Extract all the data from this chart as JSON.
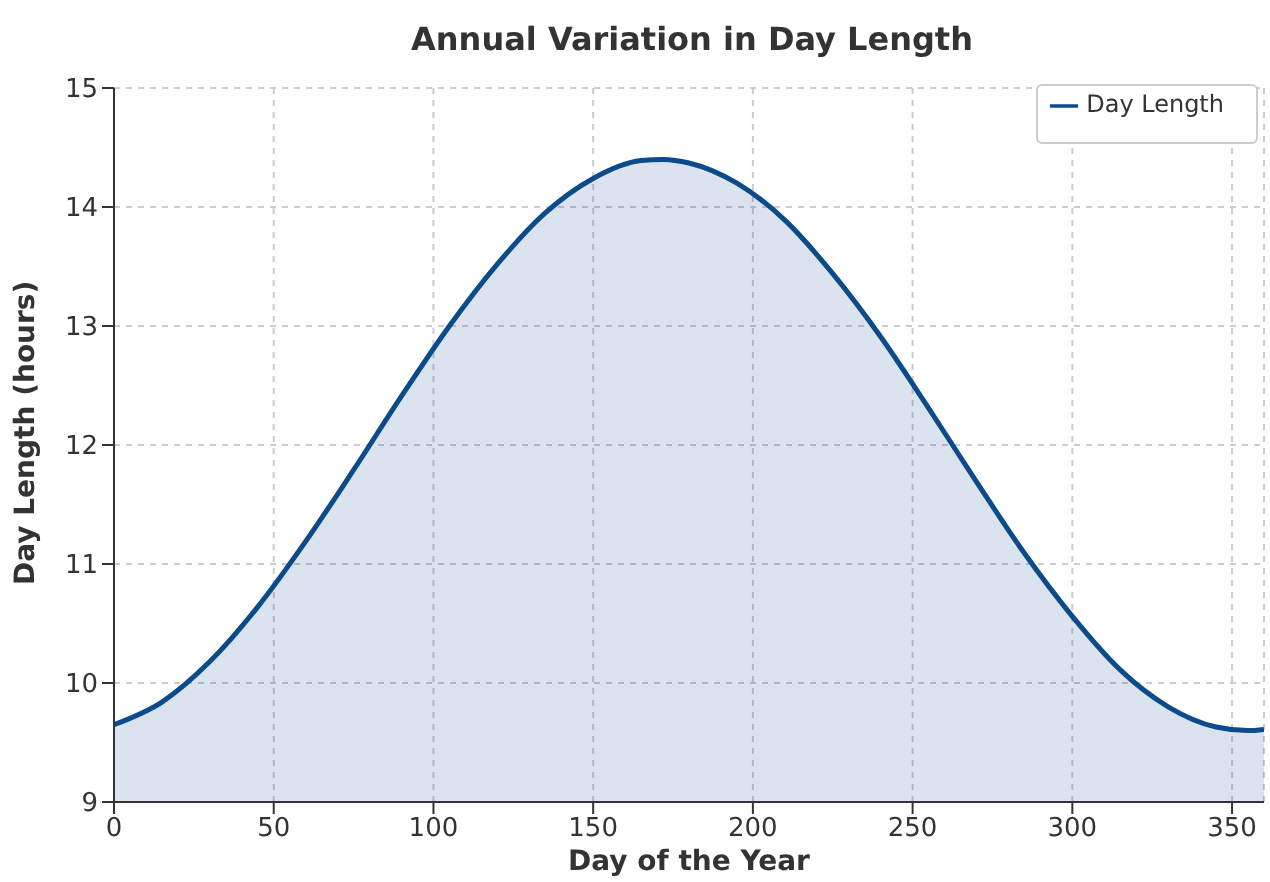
{
  "chart_data": {
    "type": "area",
    "title": "Annual Variation in Day Length",
    "xlabel": "Day of the Year",
    "ylabel": "Day Length (hours)",
    "x": [
      0,
      15,
      30,
      45,
      60,
      75,
      90,
      105,
      120,
      135,
      150,
      165,
      172,
      180,
      195,
      210,
      225,
      240,
      255,
      270,
      285,
      300,
      315,
      330,
      345,
      355,
      360
    ],
    "series": [
      {
        "name": "Day Length",
        "color": "#0b4a8b",
        "values": [
          9.65,
          9.84,
          10.18,
          10.64,
          11.19,
          11.79,
          12.41,
          13.0,
          13.52,
          13.95,
          14.24,
          14.39,
          14.4,
          14.37,
          14.2,
          13.89,
          13.44,
          12.91,
          12.31,
          11.69,
          11.09,
          10.56,
          10.11,
          9.8,
          9.63,
          9.6,
          9.61
        ]
      }
    ],
    "xlim": [
      0,
      360
    ],
    "xticks": [
      0,
      50,
      100,
      150,
      200,
      250,
      300,
      350
    ],
    "ylim": [
      9,
      15
    ],
    "yticks": [
      9,
      10,
      11,
      12,
      13,
      14,
      15
    ],
    "grid": true,
    "legend": "top right"
  }
}
